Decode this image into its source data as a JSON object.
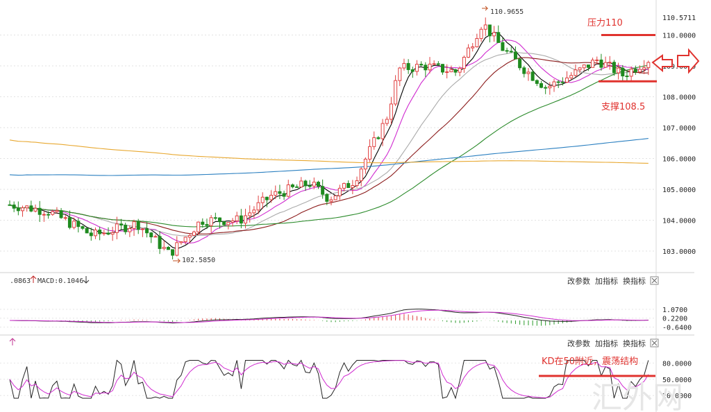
{
  "chart_data": [
    {
      "type": "candlestick",
      "ylim": [
        102.5,
        110.7
      ],
      "y_ticks": [
        "110.5711",
        "110.0000",
        "109.0000",
        "108.0000",
        "107.0000",
        "106.0000",
        "105.0000",
        "104.0000",
        "103.0000"
      ],
      "tick_values": [
        110.5711,
        110.0,
        109.0,
        108.0,
        107.0,
        106.0,
        105.0,
        104.0,
        103.0
      ],
      "high_label": "110.9655",
      "low_label": "102.5850",
      "annotations": {
        "resistance_text": "压力110",
        "resistance_value": 110.0,
        "support_text": "支撑108.5",
        "support_value": 108.5
      },
      "ma_colors": [
        "#000000",
        "#d02bd0",
        "#aaaaaa",
        "#8b1a1a",
        "#2a8a2a",
        "#2a7fc0",
        "#e8a830"
      ],
      "watermark": "汇外网"
    },
    {
      "type": "line",
      "name": "MACD",
      "left_text": ".0863",
      "macd_label": "MACD:0.1046",
      "y_ticks": [
        "1.0700",
        "0.2200",
        "-0.6400"
      ],
      "tick_values": [
        1.07,
        0.22,
        -0.64
      ],
      "ylim": [
        -0.8,
        1.2
      ],
      "buttons": [
        "改参数",
        "加指标",
        "换指标"
      ]
    },
    {
      "type": "line",
      "name": "KD",
      "y_ticks": [
        "80.0000",
        "50.0000",
        "20.0000"
      ],
      "tick_values": [
        80,
        50,
        20
      ],
      "ylim": [
        10,
        95
      ],
      "annotation": "KD在50附近，震荡结构",
      "buttons": [
        "改参数",
        "加指标",
        "换指标"
      ]
    }
  ]
}
